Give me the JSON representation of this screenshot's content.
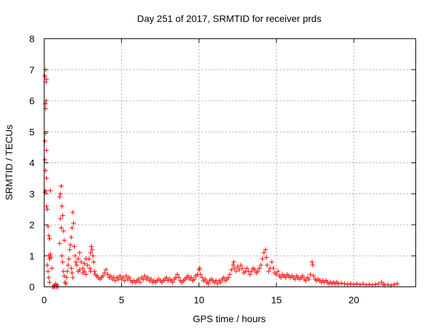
{
  "chart_data": {
    "type": "scatter",
    "title": "Day 251 of 2017, SRMTID for receiver prds",
    "xlabel": "GPS time / hours",
    "ylabel": "SRMTID / TECUs",
    "xlim": [
      0,
      24
    ],
    "ylim": [
      0,
      8
    ],
    "x_ticks": [
      0,
      5,
      10,
      15,
      20
    ],
    "x_tick_labels": [
      "0",
      "5",
      "10",
      "15",
      "20"
    ],
    "y_ticks": [
      0,
      1,
      2,
      3,
      4,
      5,
      6,
      7,
      8
    ],
    "y_tick_labels": [
      "0",
      "1",
      "2",
      "3",
      "4",
      "5",
      "6",
      "7",
      "8"
    ],
    "grid": true,
    "marker": "+",
    "color": "#ff0000",
    "series": [
      {
        "name": "SRMTID",
        "points": [
          [
            0.05,
            6.8
          ],
          [
            0.1,
            7.0
          ],
          [
            0.12,
            6.6
          ],
          [
            0.15,
            6.7
          ],
          [
            0.08,
            5.9
          ],
          [
            0.12,
            6.0
          ],
          [
            0.1,
            5.75
          ],
          [
            0.05,
            4.7
          ],
          [
            0.1,
            4.95
          ],
          [
            0.15,
            4.4
          ],
          [
            0.05,
            4.1
          ],
          [
            0.1,
            3.75
          ],
          [
            0.15,
            3.5
          ],
          [
            0.05,
            3.05
          ],
          [
            0.1,
            3.1
          ],
          [
            0.2,
            2.5
          ],
          [
            0.25,
            1.95
          ],
          [
            0.3,
            1.65
          ],
          [
            0.35,
            1.55
          ],
          [
            0.3,
            1.0
          ],
          [
            0.35,
            0.9
          ],
          [
            0.4,
            1.05
          ],
          [
            0.2,
            0.7
          ],
          [
            0.25,
            0.5
          ],
          [
            0.3,
            0.3
          ],
          [
            0.35,
            0.15
          ],
          [
            0.4,
            3.1
          ],
          [
            0.15,
            2.6
          ],
          [
            0.45,
            0.95
          ],
          [
            0.5,
            0.6
          ],
          [
            0.55,
            0.0
          ],
          [
            0.6,
            0.0
          ],
          [
            0.7,
            0.0
          ],
          [
            0.8,
            0.0
          ],
          [
            0.9,
            0.0
          ],
          [
            0.65,
            0.05
          ],
          [
            0.75,
            0.1
          ],
          [
            0.85,
            0.05
          ],
          [
            1.0,
            2.9
          ],
          [
            1.05,
            3.0
          ],
          [
            1.1,
            3.25
          ],
          [
            1.15,
            2.6
          ],
          [
            1.2,
            2.3
          ],
          [
            1.25,
            1.8
          ],
          [
            1.3,
            1.5
          ],
          [
            1.05,
            2.2
          ],
          [
            1.1,
            1.9
          ],
          [
            1.0,
            1.4
          ],
          [
            1.15,
            1.0
          ],
          [
            1.2,
            0.8
          ],
          [
            1.25,
            0.5
          ],
          [
            1.3,
            0.35
          ],
          [
            1.35,
            0.15
          ],
          [
            1.4,
            0.1
          ],
          [
            1.45,
            0.3
          ],
          [
            1.5,
            0.5
          ],
          [
            1.55,
            0.7
          ],
          [
            1.6,
            0.9
          ],
          [
            1.65,
            1.2
          ],
          [
            1.7,
            1.35
          ],
          [
            1.75,
            1.6
          ],
          [
            1.8,
            1.9
          ],
          [
            1.85,
            2.4
          ],
          [
            1.9,
            2.05
          ],
          [
            1.95,
            1.3
          ],
          [
            2.0,
            1.0
          ],
          [
            2.05,
            0.8
          ],
          [
            1.75,
            0.6
          ],
          [
            1.8,
            0.45
          ],
          [
            1.85,
            0.3
          ],
          [
            2.1,
            0.7
          ],
          [
            2.2,
            0.9
          ],
          [
            2.3,
            1.1
          ],
          [
            2.4,
            0.8
          ],
          [
            2.5,
            0.6
          ],
          [
            2.6,
            0.75
          ],
          [
            2.7,
            0.9
          ],
          [
            2.8,
            0.7
          ],
          [
            2.2,
            0.5
          ],
          [
            2.3,
            0.55
          ],
          [
            2.5,
            0.45
          ],
          [
            2.6,
            0.5
          ],
          [
            2.7,
            0.4
          ],
          [
            2.9,
            0.9
          ],
          [
            3.0,
            1.1
          ],
          [
            3.05,
            1.3
          ],
          [
            3.1,
            1.2
          ],
          [
            3.15,
            1.0
          ],
          [
            3.2,
            0.8
          ],
          [
            2.95,
            0.6
          ],
          [
            3.0,
            0.5
          ],
          [
            3.25,
            0.5
          ],
          [
            3.3,
            0.4
          ],
          [
            3.4,
            0.35
          ],
          [
            3.5,
            0.3
          ],
          [
            3.6,
            0.25
          ],
          [
            3.7,
            0.3
          ],
          [
            3.8,
            0.35
          ],
          [
            3.9,
            0.45
          ],
          [
            4.0,
            0.55
          ],
          [
            4.1,
            0.4
          ],
          [
            4.2,
            0.3
          ],
          [
            4.3,
            0.35
          ],
          [
            4.4,
            0.25
          ],
          [
            4.5,
            0.3
          ],
          [
            4.6,
            0.2
          ],
          [
            4.7,
            0.3
          ],
          [
            4.8,
            0.25
          ],
          [
            4.9,
            0.35
          ],
          [
            5.0,
            0.25
          ],
          [
            5.1,
            0.3
          ],
          [
            5.2,
            0.2
          ],
          [
            5.3,
            0.35
          ],
          [
            5.4,
            0.25
          ],
          [
            5.5,
            0.3
          ],
          [
            5.6,
            0.2
          ],
          [
            5.7,
            0.15
          ],
          [
            5.8,
            0.2
          ],
          [
            5.9,
            0.15
          ],
          [
            6.0,
            0.2
          ],
          [
            6.1,
            0.25
          ],
          [
            6.2,
            0.15
          ],
          [
            6.3,
            0.3
          ],
          [
            6.4,
            0.25
          ],
          [
            6.5,
            0.35
          ],
          [
            6.6,
            0.25
          ],
          [
            6.7,
            0.3
          ],
          [
            6.8,
            0.2
          ],
          [
            6.9,
            0.25
          ],
          [
            7.0,
            0.15
          ],
          [
            7.1,
            0.2
          ],
          [
            7.2,
            0.15
          ],
          [
            7.3,
            0.2
          ],
          [
            7.4,
            0.25
          ],
          [
            7.5,
            0.2
          ],
          [
            7.6,
            0.15
          ],
          [
            7.7,
            0.2
          ],
          [
            7.8,
            0.25
          ],
          [
            7.9,
            0.3
          ],
          [
            8.0,
            0.2
          ],
          [
            8.1,
            0.25
          ],
          [
            8.2,
            0.2
          ],
          [
            8.3,
            0.15
          ],
          [
            8.4,
            0.25
          ],
          [
            8.5,
            0.3
          ],
          [
            8.6,
            0.4
          ],
          [
            8.7,
            0.3
          ],
          [
            8.8,
            0.2
          ],
          [
            8.9,
            0.15
          ],
          [
            9.0,
            0.2
          ],
          [
            9.1,
            0.25
          ],
          [
            9.2,
            0.3
          ],
          [
            9.3,
            0.35
          ],
          [
            9.4,
            0.25
          ],
          [
            9.5,
            0.3
          ],
          [
            9.6,
            0.2
          ],
          [
            9.7,
            0.25
          ],
          [
            9.8,
            0.35
          ],
          [
            9.9,
            0.4
          ],
          [
            10.0,
            0.55
          ],
          [
            10.05,
            0.6
          ],
          [
            10.1,
            0.4
          ],
          [
            10.2,
            0.3
          ],
          [
            10.3,
            0.2
          ],
          [
            10.4,
            0.25
          ],
          [
            10.5,
            0.15
          ],
          [
            10.6,
            0.1
          ],
          [
            10.7,
            0.2
          ],
          [
            10.8,
            0.25
          ],
          [
            10.9,
            0.2
          ],
          [
            11.0,
            0.15
          ],
          [
            11.1,
            0.2
          ],
          [
            11.2,
            0.1
          ],
          [
            11.3,
            0.2
          ],
          [
            11.4,
            0.15
          ],
          [
            11.5,
            0.25
          ],
          [
            11.6,
            0.3
          ],
          [
            11.7,
            0.2
          ],
          [
            11.8,
            0.25
          ],
          [
            11.9,
            0.3
          ],
          [
            12.0,
            0.4
          ],
          [
            12.1,
            0.55
          ],
          [
            12.2,
            0.7
          ],
          [
            12.25,
            0.8
          ],
          [
            12.3,
            0.6
          ],
          [
            12.4,
            0.5
          ],
          [
            12.5,
            0.65
          ],
          [
            12.6,
            0.55
          ],
          [
            12.7,
            0.7
          ],
          [
            12.8,
            0.6
          ],
          [
            12.9,
            0.45
          ],
          [
            13.0,
            0.5
          ],
          [
            13.1,
            0.6
          ],
          [
            13.2,
            0.5
          ],
          [
            13.3,
            0.4
          ],
          [
            13.4,
            0.5
          ],
          [
            13.5,
            0.6
          ],
          [
            13.6,
            0.55
          ],
          [
            13.7,
            0.45
          ],
          [
            13.8,
            0.5
          ],
          [
            13.9,
            0.6
          ],
          [
            14.0,
            0.7
          ],
          [
            14.1,
            0.9
          ],
          [
            14.2,
            1.1
          ],
          [
            14.3,
            1.2
          ],
          [
            14.35,
            0.95
          ],
          [
            14.4,
            0.7
          ],
          [
            14.5,
            0.5
          ],
          [
            14.6,
            0.6
          ],
          [
            14.7,
            0.8
          ],
          [
            14.8,
            0.6
          ],
          [
            14.9,
            0.45
          ],
          [
            15.0,
            0.4
          ],
          [
            15.1,
            0.5
          ],
          [
            15.2,
            0.35
          ],
          [
            15.3,
            0.3
          ],
          [
            15.4,
            0.4
          ],
          [
            15.5,
            0.35
          ],
          [
            15.6,
            0.3
          ],
          [
            15.7,
            0.4
          ],
          [
            15.8,
            0.35
          ],
          [
            15.9,
            0.3
          ],
          [
            16.0,
            0.35
          ],
          [
            16.1,
            0.3
          ],
          [
            16.2,
            0.25
          ],
          [
            16.3,
            0.35
          ],
          [
            16.4,
            0.3
          ],
          [
            16.5,
            0.25
          ],
          [
            16.6,
            0.3
          ],
          [
            16.7,
            0.35
          ],
          [
            16.8,
            0.25
          ],
          [
            16.9,
            0.2
          ],
          [
            17.0,
            0.3
          ],
          [
            17.1,
            0.25
          ],
          [
            17.2,
            0.4
          ],
          [
            17.3,
            0.8
          ],
          [
            17.35,
            0.7
          ],
          [
            17.4,
            0.35
          ],
          [
            17.5,
            0.25
          ],
          [
            17.6,
            0.2
          ],
          [
            17.7,
            0.25
          ],
          [
            17.8,
            0.2
          ],
          [
            17.9,
            0.15
          ],
          [
            18.0,
            0.2
          ],
          [
            18.1,
            0.15
          ],
          [
            18.2,
            0.2
          ],
          [
            18.3,
            0.15
          ],
          [
            18.4,
            0.1
          ],
          [
            18.5,
            0.15
          ],
          [
            18.6,
            0.1
          ],
          [
            18.7,
            0.15
          ],
          [
            18.8,
            0.1
          ],
          [
            18.9,
            0.15
          ],
          [
            19.0,
            0.1
          ],
          [
            19.2,
            0.12
          ],
          [
            19.4,
            0.1
          ],
          [
            19.6,
            0.08
          ],
          [
            19.8,
            0.1
          ],
          [
            20.0,
            0.08
          ],
          [
            20.2,
            0.1
          ],
          [
            20.4,
            0.07
          ],
          [
            20.6,
            0.1
          ],
          [
            20.8,
            0.06
          ],
          [
            21.0,
            0.08
          ],
          [
            21.2,
            0.06
          ],
          [
            21.4,
            0.08
          ],
          [
            21.6,
            0.1
          ],
          [
            21.8,
            0.15
          ],
          [
            21.9,
            0.08
          ],
          [
            22.0,
            0.06
          ],
          [
            22.2,
            0.07
          ],
          [
            22.4,
            0.05
          ],
          [
            22.6,
            0.08
          ],
          [
            22.8,
            0.1
          ]
        ]
      }
    ]
  }
}
